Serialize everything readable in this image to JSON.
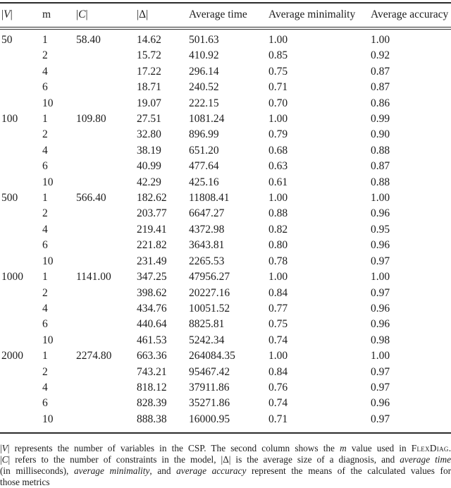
{
  "colors": {
    "text": "#1c1c1c",
    "rule": "#2b2b2b",
    "background": "#ffffff"
  },
  "table": {
    "columns": [
      {
        "key": "v",
        "segments": [
          {
            "t": "|"
          },
          {
            "t": "V",
            "s": "i"
          },
          {
            "t": "|"
          }
        ]
      },
      {
        "key": "m",
        "segments": [
          {
            "t": "m"
          }
        ]
      },
      {
        "key": "c",
        "segments": [
          {
            "t": "|"
          },
          {
            "t": "C",
            "s": "i"
          },
          {
            "t": "|"
          }
        ]
      },
      {
        "key": "delta",
        "segments": [
          {
            "t": "|Δ|"
          }
        ]
      },
      {
        "key": "time",
        "segments": [
          {
            "t": "Average time"
          }
        ]
      },
      {
        "key": "minimality",
        "segments": [
          {
            "t": "Average minimality"
          }
        ]
      },
      {
        "key": "accuracy",
        "segments": [
          {
            "t": "Average accuracy"
          }
        ]
      }
    ],
    "blocks": [
      {
        "v": "50",
        "c": "58.40",
        "rows": [
          {
            "m": "1",
            "delta": "14.62",
            "time": "501.63",
            "minimality": "1.00",
            "accuracy": "1.00"
          },
          {
            "m": "2",
            "delta": "15.72",
            "time": "410.92",
            "minimality": "0.85",
            "accuracy": "0.92"
          },
          {
            "m": "4",
            "delta": "17.22",
            "time": "296.14",
            "minimality": "0.75",
            "accuracy": "0.87"
          },
          {
            "m": "6",
            "delta": "18.71",
            "time": "240.52",
            "minimality": "0.71",
            "accuracy": "0.87"
          },
          {
            "m": "10",
            "delta": "19.07",
            "time": "222.15",
            "minimality": "0.70",
            "accuracy": "0.86"
          }
        ]
      },
      {
        "v": "100",
        "c": "109.80",
        "rows": [
          {
            "m": "1",
            "delta": "27.51",
            "time": "1081.24",
            "minimality": "1.00",
            "accuracy": "0.99"
          },
          {
            "m": "2",
            "delta": "32.80",
            "time": "896.99",
            "minimality": "0.79",
            "accuracy": "0.90"
          },
          {
            "m": "4",
            "delta": "38.19",
            "time": "651.20",
            "minimality": "0.68",
            "accuracy": "0.88"
          },
          {
            "m": "6",
            "delta": "40.99",
            "time": "477.64",
            "minimality": "0.63",
            "accuracy": "0.87"
          },
          {
            "m": "10",
            "delta": "42.29",
            "time": "425.16",
            "minimality": "0.61",
            "accuracy": "0.88"
          }
        ]
      },
      {
        "v": "500",
        "c": "566.40",
        "rows": [
          {
            "m": "1",
            "delta": "182.62",
            "time": "11808.41",
            "minimality": "1.00",
            "accuracy": "1.00"
          },
          {
            "m": "2",
            "delta": "203.77",
            "time": "6647.27",
            "minimality": "0.88",
            "accuracy": "0.96"
          },
          {
            "m": "4",
            "delta": "219.41",
            "time": "4372.98",
            "minimality": "0.82",
            "accuracy": "0.95"
          },
          {
            "m": "6",
            "delta": "221.82",
            "time": "3643.81",
            "minimality": "0.80",
            "accuracy": "0.96"
          },
          {
            "m": "10",
            "delta": "231.49",
            "time": "2265.53",
            "minimality": "0.78",
            "accuracy": "0.97"
          }
        ]
      },
      {
        "v": "1000",
        "c": "1141.00",
        "rows": [
          {
            "m": "1",
            "delta": "347.25",
            "time": "47956.27",
            "minimality": "1.00",
            "accuracy": "1.00"
          },
          {
            "m": "2",
            "delta": "398.62",
            "time": "20227.16",
            "minimality": "0.84",
            "accuracy": "0.97"
          },
          {
            "m": "4",
            "delta": "434.76",
            "time": "10051.52",
            "minimality": "0.77",
            "accuracy": "0.96"
          },
          {
            "m": "6",
            "delta": "440.64",
            "time": "8825.81",
            "minimality": "0.75",
            "accuracy": "0.96"
          },
          {
            "m": "10",
            "delta": "461.53",
            "time": "5242.34",
            "minimality": "0.74",
            "accuracy": "0.98"
          }
        ]
      },
      {
        "v": "2000",
        "c": "2274.80",
        "rows": [
          {
            "m": "1",
            "delta": "663.36",
            "time": "264084.35",
            "minimality": "1.00",
            "accuracy": "1.00"
          },
          {
            "m": "2",
            "delta": "743.21",
            "time": "95467.42",
            "minimality": "0.84",
            "accuracy": "0.97"
          },
          {
            "m": "4",
            "delta": "818.12",
            "time": "37911.86",
            "minimality": "0.76",
            "accuracy": "0.97"
          },
          {
            "m": "6",
            "delta": "828.39",
            "time": "35271.86",
            "minimality": "0.74",
            "accuracy": "0.96"
          },
          {
            "m": "10",
            "delta": "888.38",
            "time": "16000.95",
            "minimality": "0.71",
            "accuracy": "0.97"
          }
        ]
      }
    ]
  },
  "footnote": {
    "lines": [
      {
        "justify": true,
        "segments": [
          {
            "t": "|"
          },
          {
            "t": "V",
            "s": "i"
          },
          {
            "t": "|"
          },
          {
            "t": " represents the number of variables in the CSP. The second column shows the "
          },
          {
            "t": "m",
            "s": "i"
          },
          {
            "t": " value used in "
          },
          {
            "t": "FlexDiag",
            "s": "sc"
          },
          {
            "t": "."
          }
        ]
      },
      {
        "justify": true,
        "segments": [
          {
            "t": "|"
          },
          {
            "t": "C",
            "s": "i"
          },
          {
            "t": "|"
          },
          {
            "t": " refers to the number of constraints in the model, |Δ| is the average size of a diagnosis, and "
          },
          {
            "t": "average time",
            "s": "i"
          }
        ]
      },
      {
        "justify": true,
        "segments": [
          {
            "t": "(in milliseconds), "
          },
          {
            "t": "average minimality",
            "s": "i"
          },
          {
            "t": ", and "
          },
          {
            "t": "average accuracy",
            "s": "i"
          },
          {
            "t": " represent the means of the calculated values for"
          }
        ]
      },
      {
        "justify": false,
        "segments": [
          {
            "t": "those metrics"
          }
        ]
      }
    ]
  }
}
